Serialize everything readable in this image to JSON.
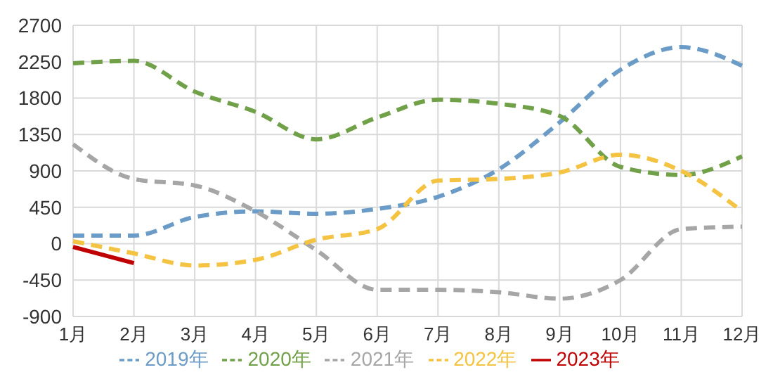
{
  "chart_data": {
    "type": "line",
    "categories": [
      "1月",
      "2月",
      "3月",
      "4月",
      "5月",
      "6月",
      "7月",
      "8月",
      "9月",
      "10月",
      "11月",
      "12月"
    ],
    "ylim": [
      -900,
      2700
    ],
    "yticks": [
      -900,
      -450,
      0,
      450,
      900,
      1350,
      1800,
      2250,
      2700
    ],
    "grid": true,
    "legend": "bottom",
    "marker": "none",
    "series": [
      {
        "name": "2019年",
        "color": "#6b9bc7",
        "line_style": "dashed",
        "values": [
          100,
          100,
          330,
          400,
          370,
          430,
          580,
          920,
          1500,
          2150,
          2430,
          2200
        ]
      },
      {
        "name": "2020年",
        "color": "#70a048",
        "line_style": "dashed",
        "values": [
          2230,
          2260,
          1880,
          1630,
          1290,
          1560,
          1780,
          1730,
          1580,
          950,
          850,
          1080
        ]
      },
      {
        "name": "2021年",
        "color": "#a6a6a6",
        "line_style": "dashed",
        "values": [
          1230,
          800,
          720,
          400,
          -80,
          -570,
          -570,
          -600,
          -680,
          -450,
          180,
          210
        ]
      },
      {
        "name": "2022年",
        "color": "#f5c342",
        "line_style": "dashed",
        "values": [
          30,
          -120,
          -270,
          -200,
          50,
          180,
          780,
          800,
          880,
          1100,
          900,
          400
        ]
      },
      {
        "name": "2023年",
        "color": "#c00000",
        "line_style": "solid",
        "values": [
          -40,
          -240,
          null,
          null,
          null,
          null,
          null,
          null,
          null,
          null,
          null,
          null
        ]
      }
    ]
  }
}
